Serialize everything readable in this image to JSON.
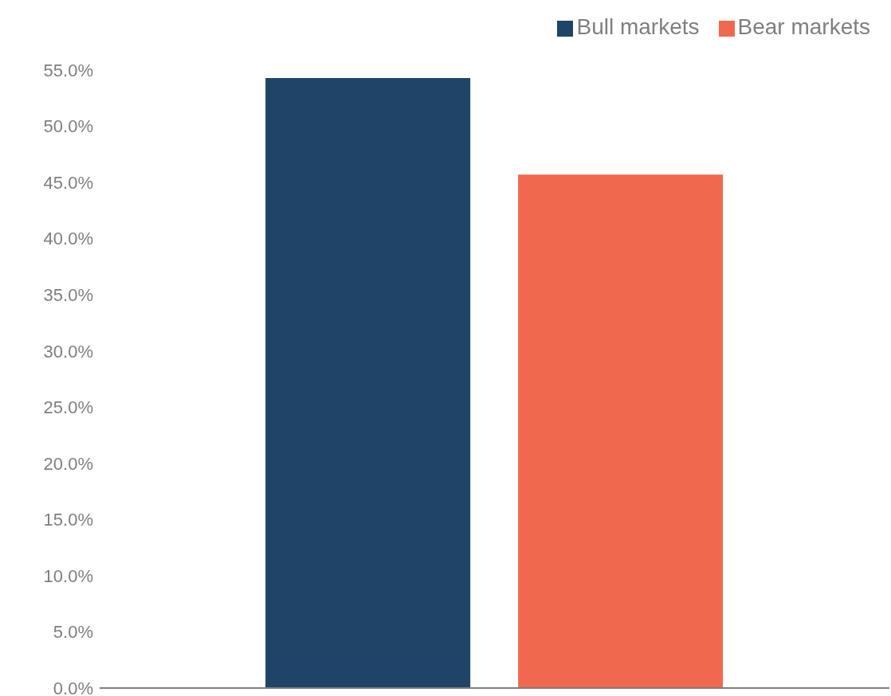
{
  "chart_data": {
    "type": "bar",
    "categories": [
      null
    ],
    "series": [
      {
        "name": "Bull markets",
        "color": "#204467",
        "values": [
          54.3
        ]
      },
      {
        "name": "Bear markets",
        "color": "#f0694f",
        "values": [
          45.7
        ]
      }
    ],
    "ylim": [
      0,
      55
    ],
    "yticks": [
      {
        "value": 0,
        "label": "0.0%"
      },
      {
        "value": 5,
        "label": "5.0%"
      },
      {
        "value": 10,
        "label": "10.0%"
      },
      {
        "value": 15,
        "label": "15.0%"
      },
      {
        "value": 20,
        "label": "20.0%"
      },
      {
        "value": 25,
        "label": "25.0%"
      },
      {
        "value": 30,
        "label": "30.0%"
      },
      {
        "value": 35,
        "label": "35.0%"
      },
      {
        "value": 40,
        "label": "40.0%"
      },
      {
        "value": 45,
        "label": "45.0%"
      },
      {
        "value": 50,
        "label": "50.0%"
      },
      {
        "value": 55,
        "label": "55.0%"
      }
    ],
    "grid": false,
    "legend": "top right"
  }
}
